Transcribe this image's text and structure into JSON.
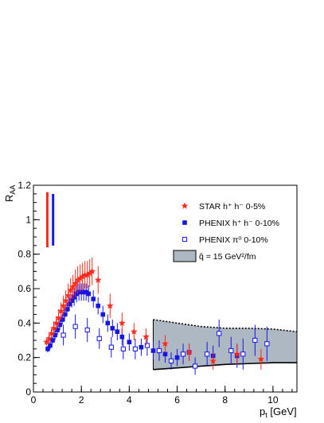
{
  "chart_data": {
    "type": "scatter",
    "xlabel": "p",
    "xlabel_sub": "t",
    "xunit": " [GeV]",
    "ylabel": "R",
    "ylabel_sub": "AA",
    "xlim": [
      0,
      11
    ],
    "ylim": [
      0,
      1.2
    ],
    "x_ticks": [
      0,
      2,
      4,
      6,
      8,
      10
    ],
    "y_ticks": [
      0,
      0.2,
      0.4,
      0.6,
      0.8,
      1.0,
      1.2
    ],
    "x_tick_labels": [
      "0",
      "2",
      "4",
      "6",
      "8",
      "10"
    ],
    "y_tick_labels": [
      "0",
      "0.2",
      "0.4",
      "0.6",
      "0.8",
      "1",
      "1.2"
    ],
    "grid": false,
    "legend_position": "top-right",
    "colors": {
      "star": "#ff2a1a",
      "phenix": "#1515e6",
      "band_fill": "#aeb8c2"
    },
    "legend": [
      {
        "marker": "star",
        "text": "STAR  h⁺ h⁻ 0-5%"
      },
      {
        "marker": "filled-square",
        "text": "PHENIX  h⁺ h⁻ 0-10%"
      },
      {
        "marker": "open-square",
        "text": "PHENIX π⁰ 0-10%"
      },
      {
        "marker": "band",
        "text": "q̂ = 15 GeV²/fm"
      }
    ],
    "norm_bars": [
      {
        "x": 0.58,
        "low": 0.84,
        "high": 1.16,
        "color": "#ff2a1a"
      },
      {
        "x": 0.82,
        "low": 0.85,
        "high": 1.15,
        "color": "#1515e6"
      }
    ],
    "series": [
      {
        "name": "STAR  h⁺ h⁻ 0-5%",
        "marker": "star",
        "points": [
          {
            "x": 0.55,
            "y": 0.29,
            "err": 0.02
          },
          {
            "x": 0.65,
            "y": 0.31,
            "err": 0.03
          },
          {
            "x": 0.75,
            "y": 0.34,
            "err": 0.03
          },
          {
            "x": 0.85,
            "y": 0.37,
            "err": 0.04
          },
          {
            "x": 0.95,
            "y": 0.4,
            "err": 0.04
          },
          {
            "x": 1.05,
            "y": 0.43,
            "err": 0.05
          },
          {
            "x": 1.15,
            "y": 0.47,
            "err": 0.05
          },
          {
            "x": 1.25,
            "y": 0.5,
            "err": 0.06
          },
          {
            "x": 1.35,
            "y": 0.53,
            "err": 0.06
          },
          {
            "x": 1.45,
            "y": 0.56,
            "err": 0.07
          },
          {
            "x": 1.55,
            "y": 0.59,
            "err": 0.07
          },
          {
            "x": 1.65,
            "y": 0.61,
            "err": 0.07
          },
          {
            "x": 1.75,
            "y": 0.63,
            "err": 0.08
          },
          {
            "x": 1.85,
            "y": 0.65,
            "err": 0.08
          },
          {
            "x": 1.95,
            "y": 0.66,
            "err": 0.08
          },
          {
            "x": 2.05,
            "y": 0.67,
            "err": 0.08
          },
          {
            "x": 2.15,
            "y": 0.68,
            "err": 0.08
          },
          {
            "x": 2.25,
            "y": 0.68,
            "err": 0.08
          },
          {
            "x": 2.35,
            "y": 0.69,
            "err": 0.08
          },
          {
            "x": 2.45,
            "y": 0.7,
            "err": 0.08
          },
          {
            "x": 2.7,
            "y": 0.65,
            "err": 0.08
          },
          {
            "x": 3.2,
            "y": 0.5,
            "err": 0.07
          },
          {
            "x": 3.7,
            "y": 0.4,
            "err": 0.06
          },
          {
            "x": 4.2,
            "y": 0.35,
            "err": 0.05
          },
          {
            "x": 4.7,
            "y": 0.32,
            "err": 0.05
          },
          {
            "x": 5.5,
            "y": 0.28,
            "err": 0.05
          },
          {
            "x": 6.5,
            "y": 0.23,
            "err": 0.05
          },
          {
            "x": 7.5,
            "y": 0.18,
            "err": 0.05
          },
          {
            "x": 8.5,
            "y": 0.22,
            "err": 0.06
          },
          {
            "x": 9.5,
            "y": 0.19,
            "err": 0.06
          }
        ]
      },
      {
        "name": "PHENIX  h⁺ h⁻ 0-10%",
        "marker": "filled-square",
        "points": [
          {
            "x": 0.6,
            "y": 0.25,
            "err": 0.02
          },
          {
            "x": 0.7,
            "y": 0.27,
            "err": 0.02
          },
          {
            "x": 0.8,
            "y": 0.3,
            "err": 0.02
          },
          {
            "x": 0.9,
            "y": 0.33,
            "err": 0.03
          },
          {
            "x": 1.0,
            "y": 0.36,
            "err": 0.03
          },
          {
            "x": 1.1,
            "y": 0.39,
            "err": 0.03
          },
          {
            "x": 1.2,
            "y": 0.42,
            "err": 0.03
          },
          {
            "x": 1.3,
            "y": 0.45,
            "err": 0.04
          },
          {
            "x": 1.4,
            "y": 0.48,
            "err": 0.04
          },
          {
            "x": 1.5,
            "y": 0.51,
            "err": 0.04
          },
          {
            "x": 1.6,
            "y": 0.53,
            "err": 0.04
          },
          {
            "x": 1.7,
            "y": 0.55,
            "err": 0.05
          },
          {
            "x": 1.8,
            "y": 0.57,
            "err": 0.05
          },
          {
            "x": 1.9,
            "y": 0.58,
            "err": 0.05
          },
          {
            "x": 2.0,
            "y": 0.58,
            "err": 0.05
          },
          {
            "x": 2.1,
            "y": 0.58,
            "err": 0.05
          },
          {
            "x": 2.2,
            "y": 0.58,
            "err": 0.05
          },
          {
            "x": 2.3,
            "y": 0.57,
            "err": 0.05
          },
          {
            "x": 2.5,
            "y": 0.54,
            "err": 0.05
          },
          {
            "x": 2.7,
            "y": 0.5,
            "err": 0.05
          },
          {
            "x": 2.9,
            "y": 0.45,
            "err": 0.05
          },
          {
            "x": 3.1,
            "y": 0.4,
            "err": 0.05
          },
          {
            "x": 3.3,
            "y": 0.37,
            "err": 0.05
          },
          {
            "x": 3.5,
            "y": 0.35,
            "err": 0.05
          },
          {
            "x": 3.7,
            "y": 0.32,
            "err": 0.05
          },
          {
            "x": 4.0,
            "y": 0.29,
            "err": 0.05
          },
          {
            "x": 4.5,
            "y": 0.26,
            "err": 0.05
          },
          {
            "x": 5.0,
            "y": 0.24,
            "err": 0.05
          },
          {
            "x": 5.5,
            "y": 0.22,
            "err": 0.05
          },
          {
            "x": 6.0,
            "y": 0.2,
            "err": 0.05
          },
          {
            "x": 6.5,
            "y": 0.23,
            "err": 0.05
          },
          {
            "x": 7.5,
            "y": 0.21,
            "err": 0.06
          },
          {
            "x": 8.5,
            "y": 0.21,
            "err": 0.07
          }
        ]
      },
      {
        "name": "PHENIX π⁰ 0-10%",
        "marker": "open-square",
        "points": [
          {
            "x": 1.25,
            "y": 0.33,
            "err": 0.06
          },
          {
            "x": 1.75,
            "y": 0.38,
            "err": 0.07
          },
          {
            "x": 2.25,
            "y": 0.36,
            "err": 0.07
          },
          {
            "x": 2.75,
            "y": 0.31,
            "err": 0.06
          },
          {
            "x": 3.25,
            "y": 0.26,
            "err": 0.06
          },
          {
            "x": 3.75,
            "y": 0.25,
            "err": 0.06
          },
          {
            "x": 4.25,
            "y": 0.25,
            "err": 0.06
          },
          {
            "x": 4.75,
            "y": 0.27,
            "err": 0.06
          },
          {
            "x": 5.25,
            "y": 0.24,
            "err": 0.06
          },
          {
            "x": 5.75,
            "y": 0.18,
            "err": 0.05
          },
          {
            "x": 6.25,
            "y": 0.22,
            "err": 0.06
          },
          {
            "x": 6.75,
            "y": 0.15,
            "err": 0.05
          },
          {
            "x": 7.25,
            "y": 0.22,
            "err": 0.07
          },
          {
            "x": 7.75,
            "y": 0.34,
            "err": 0.08
          },
          {
            "x": 8.25,
            "y": 0.24,
            "err": 0.08
          },
          {
            "x": 8.75,
            "y": 0.22,
            "err": 0.09
          },
          {
            "x": 9.25,
            "y": 0.3,
            "err": 0.09
          },
          {
            "x": 9.75,
            "y": 0.28,
            "err": 0.1
          }
        ]
      }
    ],
    "band": {
      "label": "q̂ = 15 GeV²/fm",
      "x": [
        5.0,
        6.0,
        7.0,
        8.0,
        9.0,
        10.0,
        11.0
      ],
      "upper": [
        0.42,
        0.4,
        0.38,
        0.37,
        0.37,
        0.365,
        0.35
      ],
      "lower": [
        0.13,
        0.14,
        0.15,
        0.16,
        0.165,
        0.17,
        0.17
      ]
    }
  }
}
